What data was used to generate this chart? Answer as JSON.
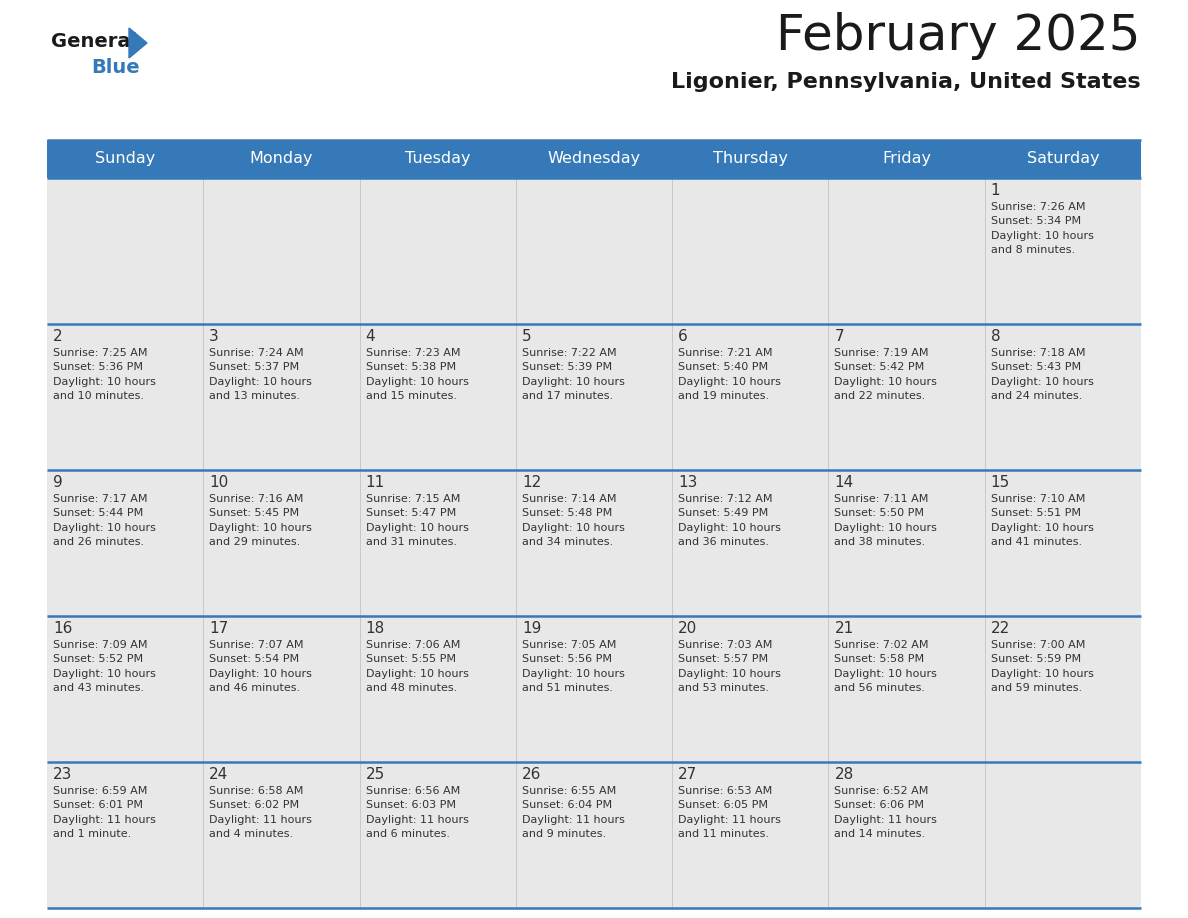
{
  "title": "February 2025",
  "subtitle": "Ligonier, Pennsylvania, United States",
  "header_bg_color": "#3579b8",
  "header_text_color": "#ffffff",
  "cell_bg_light": "#e8e8e8",
  "cell_bg_white": "#ffffff",
  "text_color": "#333333",
  "border_color": "#3579b8",
  "day_headers": [
    "Sunday",
    "Monday",
    "Tuesday",
    "Wednesday",
    "Thursday",
    "Friday",
    "Saturday"
  ],
  "weeks": [
    [
      {
        "day": "",
        "info": ""
      },
      {
        "day": "",
        "info": ""
      },
      {
        "day": "",
        "info": ""
      },
      {
        "day": "",
        "info": ""
      },
      {
        "day": "",
        "info": ""
      },
      {
        "day": "",
        "info": ""
      },
      {
        "day": "1",
        "info": "Sunrise: 7:26 AM\nSunset: 5:34 PM\nDaylight: 10 hours\nand 8 minutes."
      }
    ],
    [
      {
        "day": "2",
        "info": "Sunrise: 7:25 AM\nSunset: 5:36 PM\nDaylight: 10 hours\nand 10 minutes."
      },
      {
        "day": "3",
        "info": "Sunrise: 7:24 AM\nSunset: 5:37 PM\nDaylight: 10 hours\nand 13 minutes."
      },
      {
        "day": "4",
        "info": "Sunrise: 7:23 AM\nSunset: 5:38 PM\nDaylight: 10 hours\nand 15 minutes."
      },
      {
        "day": "5",
        "info": "Sunrise: 7:22 AM\nSunset: 5:39 PM\nDaylight: 10 hours\nand 17 minutes."
      },
      {
        "day": "6",
        "info": "Sunrise: 7:21 AM\nSunset: 5:40 PM\nDaylight: 10 hours\nand 19 minutes."
      },
      {
        "day": "7",
        "info": "Sunrise: 7:19 AM\nSunset: 5:42 PM\nDaylight: 10 hours\nand 22 minutes."
      },
      {
        "day": "8",
        "info": "Sunrise: 7:18 AM\nSunset: 5:43 PM\nDaylight: 10 hours\nand 24 minutes."
      }
    ],
    [
      {
        "day": "9",
        "info": "Sunrise: 7:17 AM\nSunset: 5:44 PM\nDaylight: 10 hours\nand 26 minutes."
      },
      {
        "day": "10",
        "info": "Sunrise: 7:16 AM\nSunset: 5:45 PM\nDaylight: 10 hours\nand 29 minutes."
      },
      {
        "day": "11",
        "info": "Sunrise: 7:15 AM\nSunset: 5:47 PM\nDaylight: 10 hours\nand 31 minutes."
      },
      {
        "day": "12",
        "info": "Sunrise: 7:14 AM\nSunset: 5:48 PM\nDaylight: 10 hours\nand 34 minutes."
      },
      {
        "day": "13",
        "info": "Sunrise: 7:12 AM\nSunset: 5:49 PM\nDaylight: 10 hours\nand 36 minutes."
      },
      {
        "day": "14",
        "info": "Sunrise: 7:11 AM\nSunset: 5:50 PM\nDaylight: 10 hours\nand 38 minutes."
      },
      {
        "day": "15",
        "info": "Sunrise: 7:10 AM\nSunset: 5:51 PM\nDaylight: 10 hours\nand 41 minutes."
      }
    ],
    [
      {
        "day": "16",
        "info": "Sunrise: 7:09 AM\nSunset: 5:52 PM\nDaylight: 10 hours\nand 43 minutes."
      },
      {
        "day": "17",
        "info": "Sunrise: 7:07 AM\nSunset: 5:54 PM\nDaylight: 10 hours\nand 46 minutes."
      },
      {
        "day": "18",
        "info": "Sunrise: 7:06 AM\nSunset: 5:55 PM\nDaylight: 10 hours\nand 48 minutes."
      },
      {
        "day": "19",
        "info": "Sunrise: 7:05 AM\nSunset: 5:56 PM\nDaylight: 10 hours\nand 51 minutes."
      },
      {
        "day": "20",
        "info": "Sunrise: 7:03 AM\nSunset: 5:57 PM\nDaylight: 10 hours\nand 53 minutes."
      },
      {
        "day": "21",
        "info": "Sunrise: 7:02 AM\nSunset: 5:58 PM\nDaylight: 10 hours\nand 56 minutes."
      },
      {
        "day": "22",
        "info": "Sunrise: 7:00 AM\nSunset: 5:59 PM\nDaylight: 10 hours\nand 59 minutes."
      }
    ],
    [
      {
        "day": "23",
        "info": "Sunrise: 6:59 AM\nSunset: 6:01 PM\nDaylight: 11 hours\nand 1 minute."
      },
      {
        "day": "24",
        "info": "Sunrise: 6:58 AM\nSunset: 6:02 PM\nDaylight: 11 hours\nand 4 minutes."
      },
      {
        "day": "25",
        "info": "Sunrise: 6:56 AM\nSunset: 6:03 PM\nDaylight: 11 hours\nand 6 minutes."
      },
      {
        "day": "26",
        "info": "Sunrise: 6:55 AM\nSunset: 6:04 PM\nDaylight: 11 hours\nand 9 minutes."
      },
      {
        "day": "27",
        "info": "Sunrise: 6:53 AM\nSunset: 6:05 PM\nDaylight: 11 hours\nand 11 minutes."
      },
      {
        "day": "28",
        "info": "Sunrise: 6:52 AM\nSunset: 6:06 PM\nDaylight: 11 hours\nand 14 minutes."
      },
      {
        "day": "",
        "info": ""
      }
    ]
  ],
  "logo_general_color": "#1a1a1a",
  "logo_blue_color": "#3579b8",
  "logo_triangle_color": "#3579b8"
}
